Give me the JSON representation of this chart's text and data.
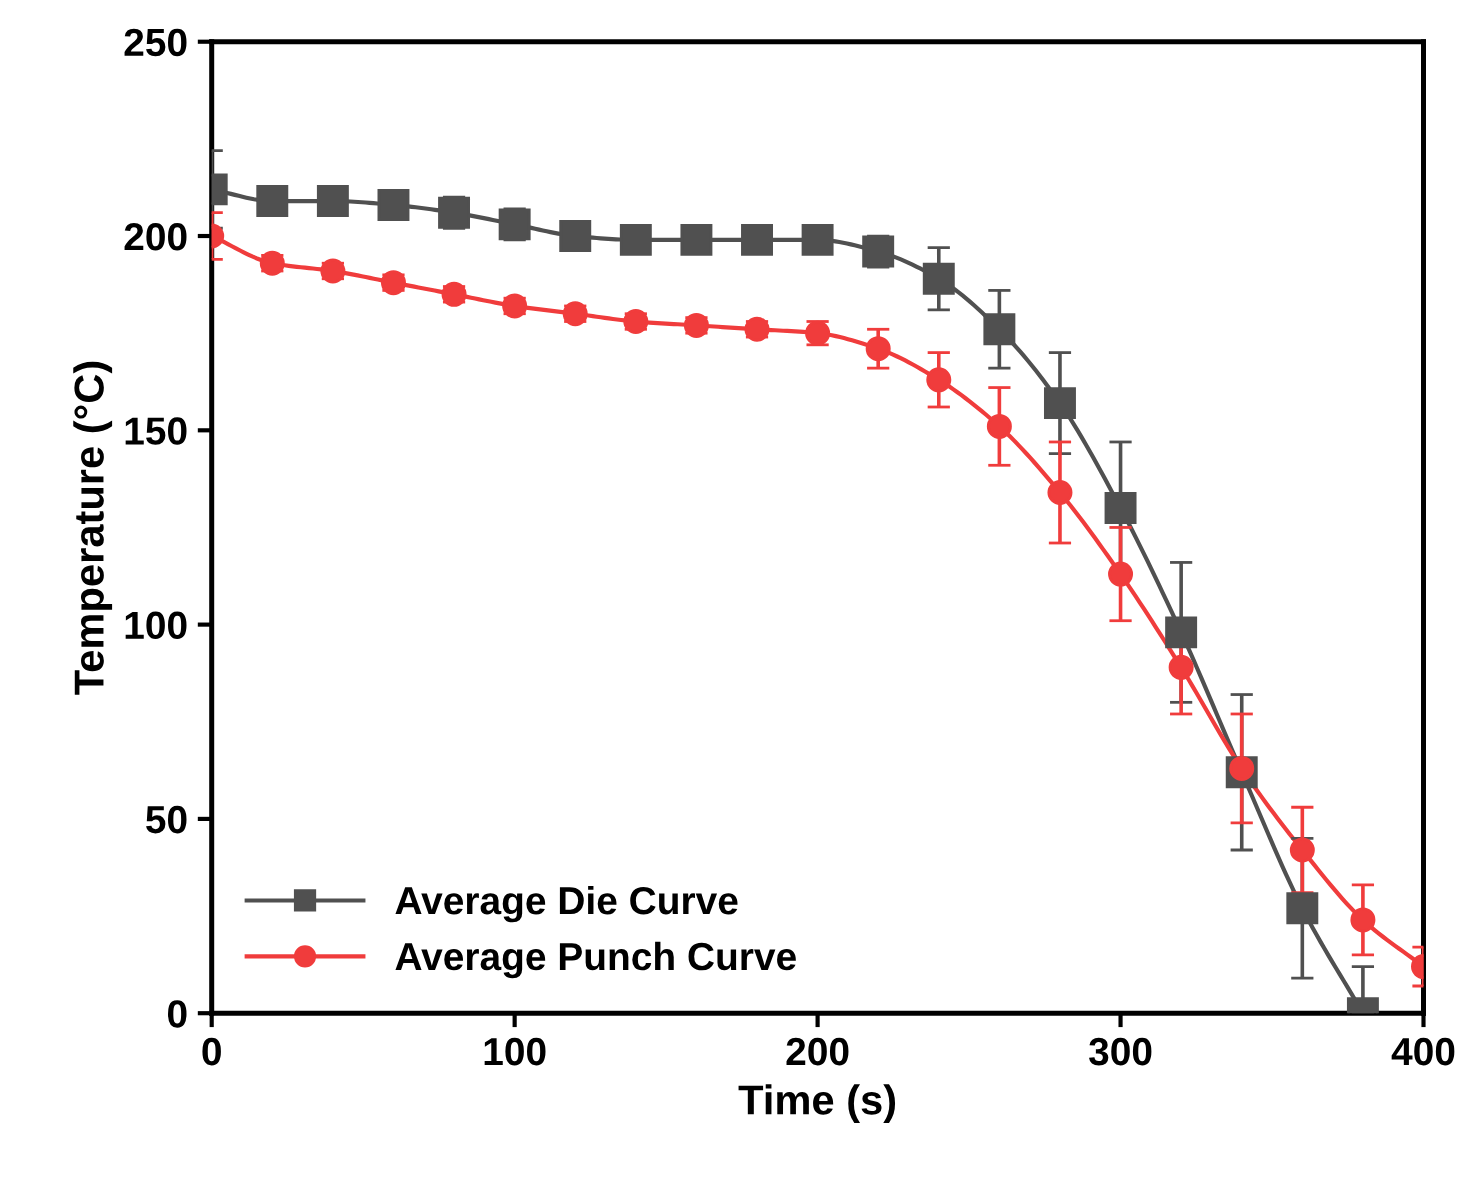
{
  "chart_data": {
    "type": "line",
    "xlabel": "Time (s)",
    "ylabel": "Temperature (°C)",
    "xlim": [
      0,
      400
    ],
    "xticks": [
      0,
      100,
      200,
      300,
      400
    ],
    "ylim": [
      0,
      250
    ],
    "yticks": [
      0,
      50,
      100,
      150,
      200,
      250
    ],
    "legend": "bottom left",
    "grid": false,
    "line_style": "solid",
    "series": [
      {
        "name": "Average Die Curve",
        "color": "#505050",
        "marker": "square",
        "x": [
          0,
          20,
          40,
          60,
          80,
          100,
          120,
          140,
          160,
          180,
          200,
          220,
          240,
          260,
          280,
          300,
          320,
          340,
          360,
          380
        ],
        "values": [
          212,
          209,
          209,
          208,
          206,
          203,
          200,
          199,
          199,
          199,
          199,
          196,
          189,
          176,
          157,
          130,
          98,
          62,
          27,
          0
        ],
        "errors": [
          10,
          2,
          2,
          2,
          4,
          4,
          3,
          2,
          2,
          2,
          2,
          4,
          8,
          10,
          13,
          17,
          18,
          20,
          18,
          [
            0,
            12
          ]
        ]
      },
      {
        "name": "Average Punch Curve",
        "color": "#f03c3c",
        "marker": "circle",
        "x": [
          0,
          20,
          40,
          60,
          80,
          100,
          120,
          140,
          160,
          180,
          200,
          220,
          240,
          260,
          280,
          300,
          320,
          340,
          360,
          380,
          400
        ],
        "values": [
          200,
          193,
          191,
          188,
          185,
          182,
          180,
          178,
          177,
          176,
          175,
          171,
          163,
          151,
          134,
          113,
          89,
          63,
          42,
          24,
          12
        ],
        "errors": [
          6,
          2,
          2,
          2,
          2,
          2,
          2,
          2,
          2,
          2,
          3,
          5,
          7,
          10,
          13,
          12,
          12,
          14,
          11,
          9,
          5
        ]
      }
    ]
  }
}
